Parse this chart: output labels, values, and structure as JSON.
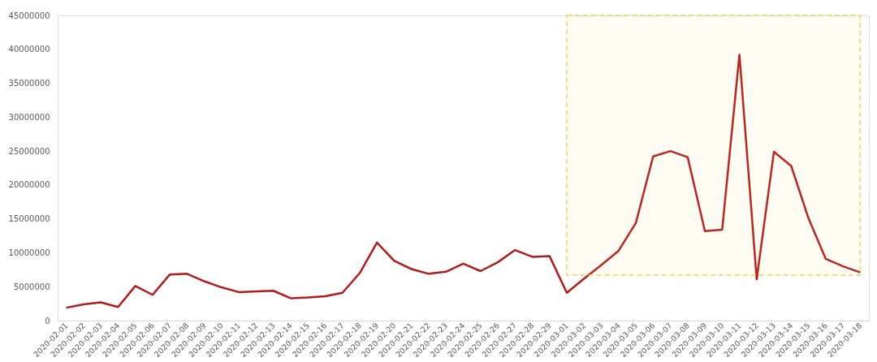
{
  "chart_data": {
    "type": "line",
    "categories": [
      "2020-02-01",
      "2020-02-02",
      "2020-02-03",
      "2020-02-04",
      "2020-02-05",
      "2020-02-06",
      "2020-02-07",
      "2020-02-08",
      "2020-02-09",
      "2020-02-10",
      "2020-02-11",
      "2020-02-12",
      "2020-02-13",
      "2020-02-14",
      "2020-02-15",
      "2020-02-16",
      "2020-02-17",
      "2020-02-18",
      "2020-02-19",
      "2020-02-20",
      "2020-02-21",
      "2020-02-22",
      "2020-02-23",
      "2020-02-24",
      "2020-02-25",
      "2020-02-26",
      "2020-02-27",
      "2020-02-28",
      "2020-02-29",
      "2020-03-01",
      "2020-03-02",
      "2020-03-03",
      "2020-03-04",
      "2020-03-05",
      "2020-03-06",
      "2020-03-07",
      "2020-03-08",
      "2020-03-09",
      "2020-03-10",
      "2020-03-11",
      "2020-03-12",
      "2020-03-13",
      "2020-03-14",
      "2020-03-15",
      "2020-03-16",
      "2020-03-17",
      "2020-03-18"
    ],
    "series": [
      {
        "color": "#b01c1c",
        "values": [
          1900000,
          2400000,
          2700000,
          2000000,
          5100000,
          3800000,
          6800000,
          6900000,
          5800000,
          4900000,
          4200000,
          4300000,
          4400000,
          3300000,
          3400000,
          3600000,
          4100000,
          7000000,
          11500000,
          8800000,
          7600000,
          6900000,
          7200000,
          8400000,
          7300000,
          8600000,
          10400000,
          9400000,
          9500000,
          4100000,
          6200000,
          8200000,
          10300000,
          14400000,
          24200000,
          25000000,
          24100000,
          13200000,
          13400000,
          39200000,
          6100000,
          24900000,
          22800000,
          15100000,
          9100000,
          8000000,
          7100000
        ]
      }
    ],
    "ylim": [
      0,
      45000000
    ],
    "yticks": [
      0,
      5000000,
      10000000,
      15000000,
      20000000,
      25000000,
      30000000,
      35000000,
      40000000,
      45000000
    ],
    "grid": false,
    "marker": "none",
    "line_style": "solid",
    "bands": [
      {
        "axis": "x",
        "from": "2020-03-01",
        "to": "2020-03-18",
        "color": "#f0d060"
      }
    ]
  }
}
